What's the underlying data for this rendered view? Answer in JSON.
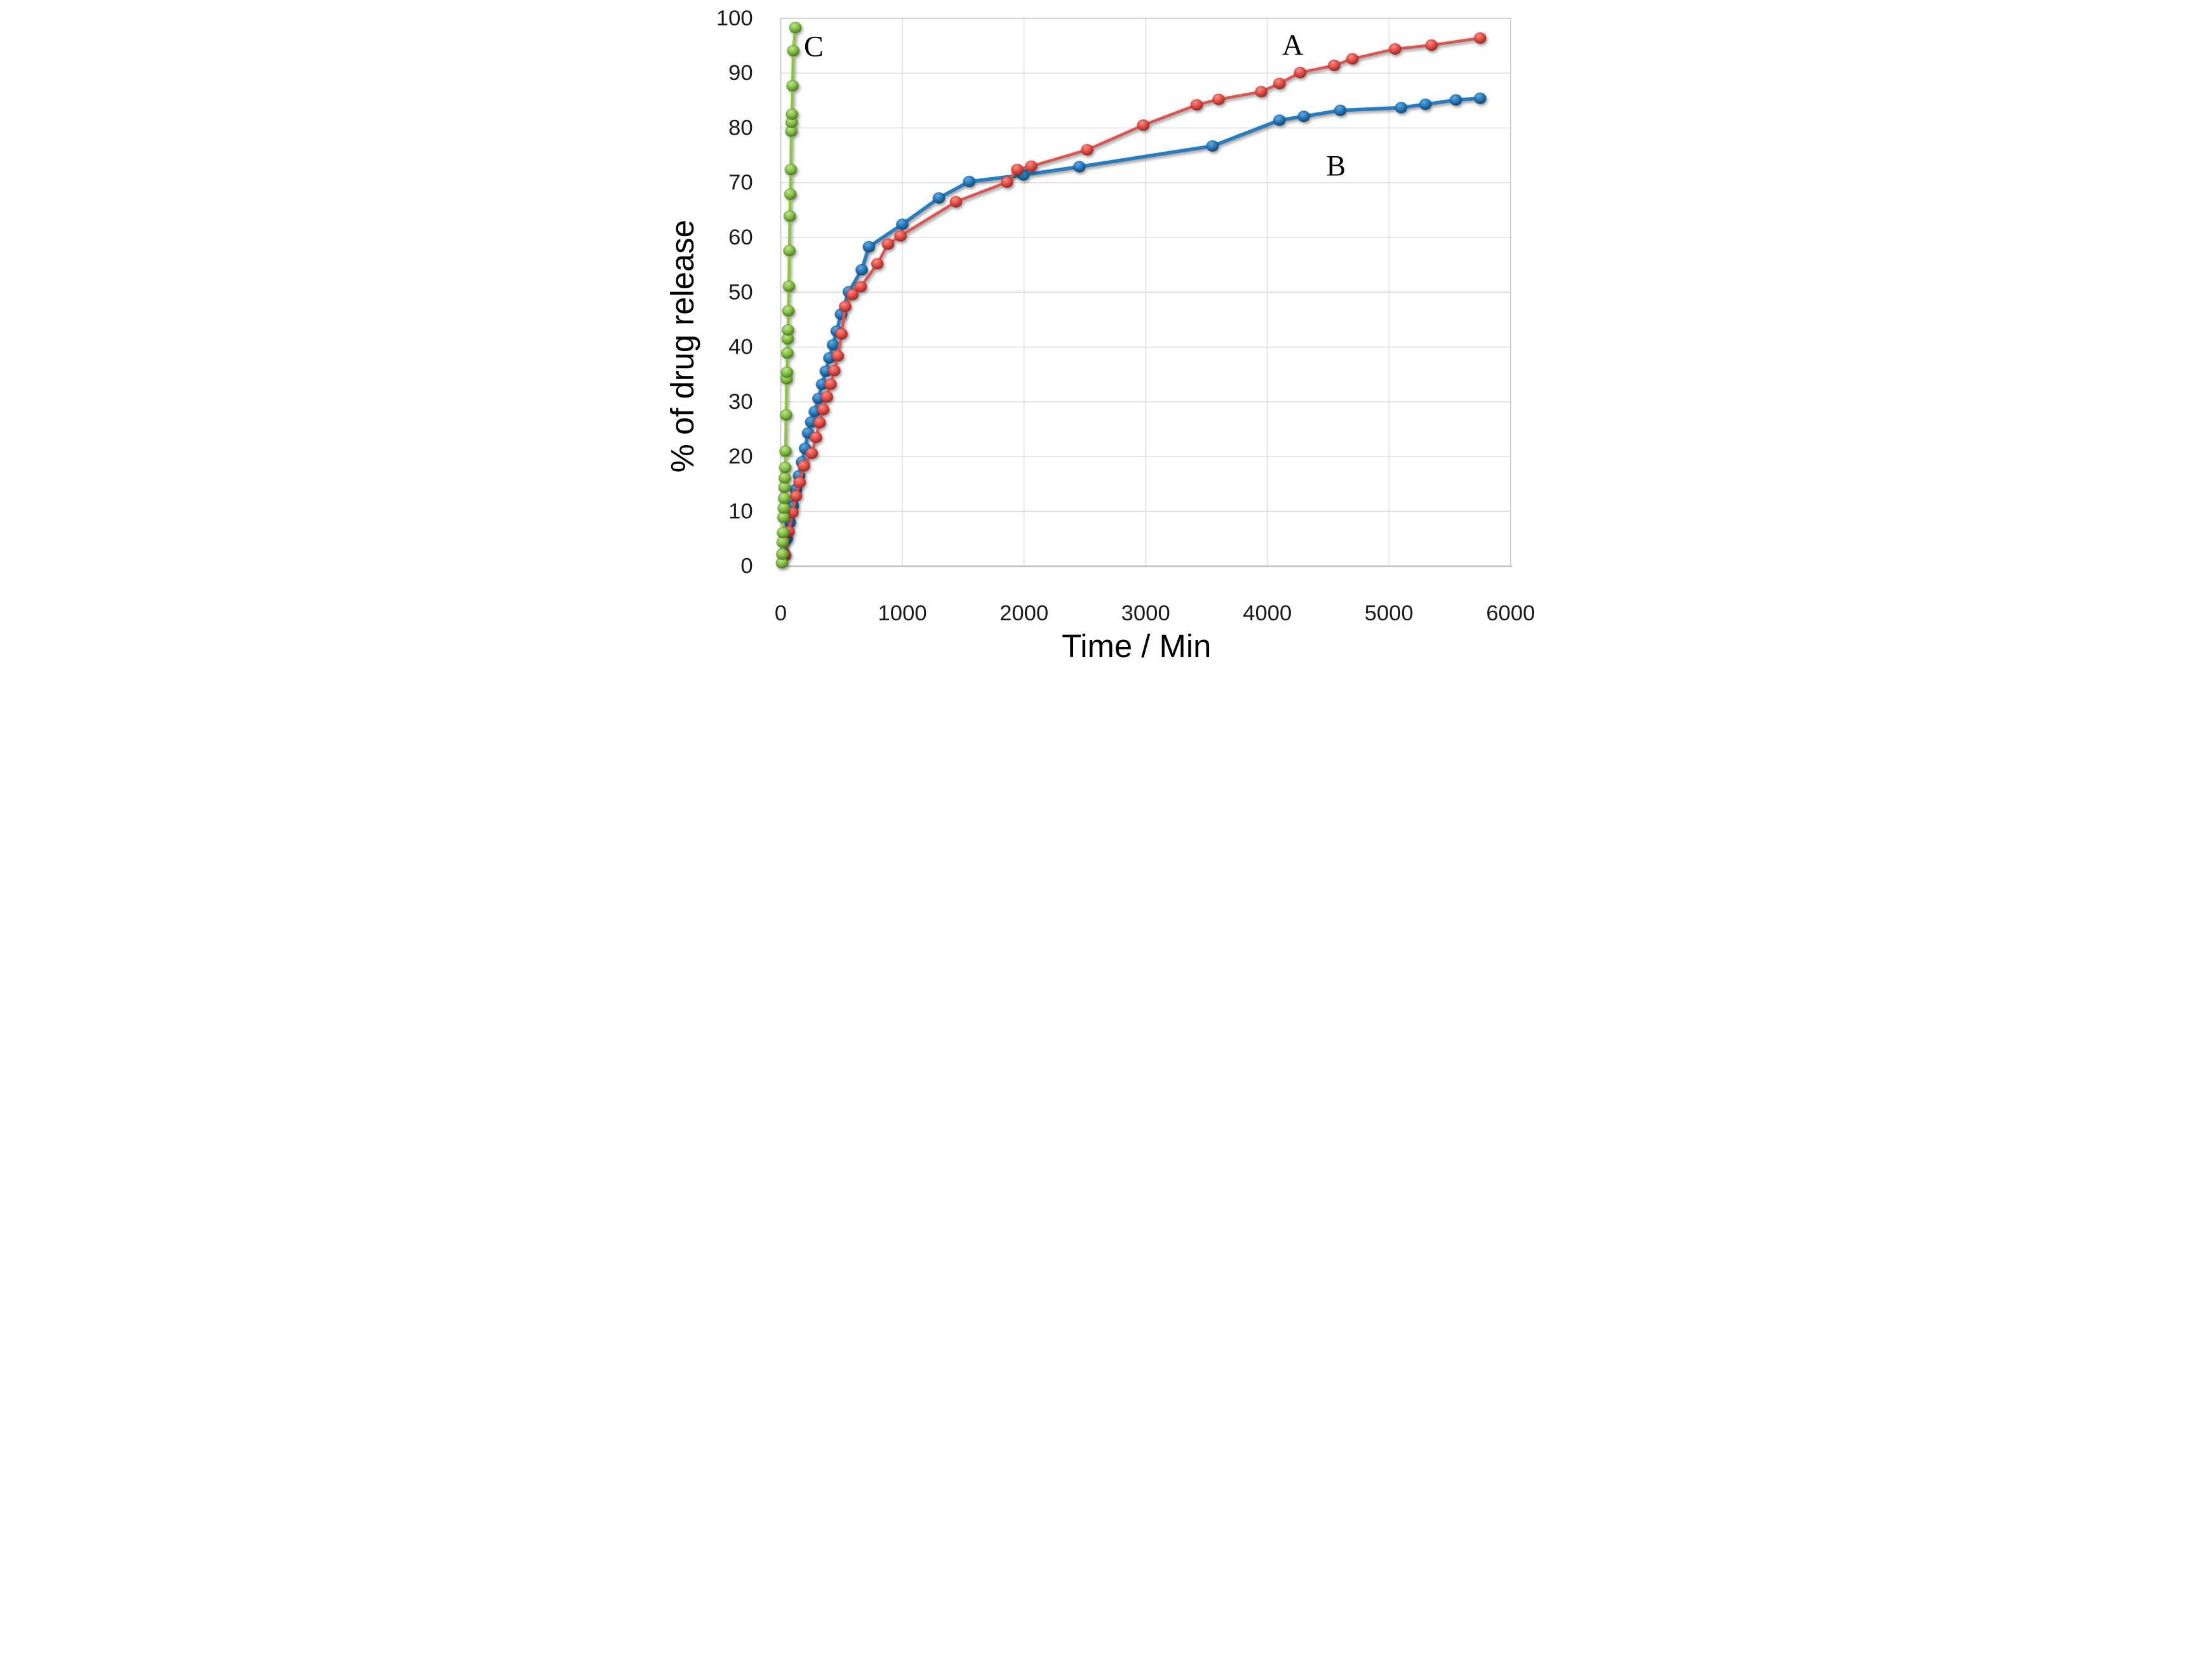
{
  "chart_data": {
    "type": "line",
    "title": "",
    "xlabel": "Time / Min",
    "ylabel": "% of drug release",
    "xlim": [
      0,
      6000
    ],
    "ylim": [
      0,
      100
    ],
    "x_ticks": [
      0,
      1000,
      2000,
      3000,
      4000,
      5000,
      6000
    ],
    "y_ticks": [
      0,
      10,
      20,
      30,
      40,
      50,
      60,
      70,
      80,
      90,
      100
    ],
    "grid": true,
    "legend_position": "none",
    "background_color": "#FFFFFF",
    "grid_color": "#D8D8D8",
    "border_color": "#C8C8C8",
    "axis_line_color": "#C4C4C4",
    "tick_label_color": "#1A1A1A",
    "title_color": "#000000",
    "marker_style": "glossy-sphere",
    "series": [
      {
        "name": "B",
        "line_color": "#2A7CBF",
        "line_width": 4.9,
        "ball_light": "#66A9DC",
        "ball_base": "#2176BC",
        "ball_dark": "#11486F",
        "points": [
          [
            25,
            2.4
          ],
          [
            50,
            5.0
          ],
          [
            75,
            8.0
          ],
          [
            100,
            11.0
          ],
          [
            125,
            14.0
          ],
          [
            150,
            16.5
          ],
          [
            175,
            19.0
          ],
          [
            200,
            21.5
          ],
          [
            225,
            24.3
          ],
          [
            250,
            26.3
          ],
          [
            280,
            28.2
          ],
          [
            310,
            30.6
          ],
          [
            340,
            33.2
          ],
          [
            370,
            35.6
          ],
          [
            400,
            38.0
          ],
          [
            430,
            40.4
          ],
          [
            460,
            42.9
          ],
          [
            495,
            46.0
          ],
          [
            560,
            50.1
          ],
          [
            666,
            54.1
          ],
          [
            725,
            58.3
          ],
          [
            1000,
            62.4
          ],
          [
            1300,
            67.2
          ],
          [
            1550,
            70.2
          ],
          [
            1995,
            71.4
          ],
          [
            2455,
            72.9
          ],
          [
            3550,
            76.7
          ],
          [
            4100,
            81.4
          ],
          [
            4300,
            82.1
          ],
          [
            4600,
            83.2
          ],
          [
            5100,
            83.7
          ],
          [
            5300,
            84.3
          ],
          [
            5550,
            85.1
          ],
          [
            5750,
            85.4
          ]
        ]
      },
      {
        "name": "A",
        "line_color": "#D95753",
        "line_width": 4.0,
        "ball_light": "#F58F88",
        "ball_base": "#E04A43",
        "ball_dark": "#9C2420",
        "points": [
          [
            35,
            2.0
          ],
          [
            65,
            6.3
          ],
          [
            95,
            9.8
          ],
          [
            125,
            12.8
          ],
          [
            155,
            15.3
          ],
          [
            190,
            18.3
          ],
          [
            255,
            20.6
          ],
          [
            290,
            23.5
          ],
          [
            320,
            26.2
          ],
          [
            350,
            28.6
          ],
          [
            380,
            30.9
          ],
          [
            410,
            33.2
          ],
          [
            440,
            35.7
          ],
          [
            470,
            38.4
          ],
          [
            500,
            42.4
          ],
          [
            530,
            47.4
          ],
          [
            590,
            49.6
          ],
          [
            658,
            51.0
          ],
          [
            794,
            55.2
          ],
          [
            882,
            58.8
          ],
          [
            985,
            60.3
          ],
          [
            1440,
            66.5
          ],
          [
            1860,
            70.1
          ],
          [
            1945,
            72.4
          ],
          [
            2060,
            73.0
          ],
          [
            2520,
            76.0
          ],
          [
            2980,
            80.5
          ],
          [
            3420,
            84.2
          ],
          [
            3600,
            85.2
          ],
          [
            3950,
            86.6
          ],
          [
            4100,
            88.1
          ],
          [
            4270,
            90.1
          ],
          [
            4550,
            91.4
          ],
          [
            4700,
            92.6
          ],
          [
            5050,
            94.4
          ],
          [
            5350,
            95.1
          ],
          [
            5750,
            96.4
          ]
        ]
      },
      {
        "name": "C",
        "line_color": "#8CC63F",
        "line_width": 4.0,
        "ball_light": "#C2E294",
        "ball_base": "#7FBC3E",
        "ball_dark": "#47771B",
        "points": [
          [
            10,
            0.6
          ],
          [
            13,
            2.2
          ],
          [
            16,
            4.4
          ],
          [
            19,
            6.1
          ],
          [
            22,
            8.9
          ],
          [
            25,
            10.6
          ],
          [
            28,
            12.4
          ],
          [
            31,
            14.4
          ],
          [
            34,
            16.1
          ],
          [
            37,
            18.0
          ],
          [
            40,
            21.0
          ],
          [
            44,
            27.6
          ],
          [
            48,
            34.2
          ],
          [
            51,
            35.4
          ],
          [
            54,
            38.9
          ],
          [
            57,
            41.5
          ],
          [
            60,
            43.1
          ],
          [
            63,
            46.6
          ],
          [
            67,
            51.1
          ],
          [
            71,
            57.6
          ],
          [
            75,
            63.9
          ],
          [
            79,
            67.9
          ],
          [
            83,
            72.4
          ],
          [
            87,
            79.4
          ],
          [
            90,
            81.0
          ],
          [
            93,
            82.5
          ],
          [
            97,
            87.7
          ],
          [
            103,
            94.1
          ],
          [
            120,
            98.3
          ]
        ]
      }
    ],
    "annotations": [
      {
        "text": "A",
        "x": 4209,
        "y": 95.2
      },
      {
        "text": "B",
        "x": 4565,
        "y": 73.1
      },
      {
        "text": "C",
        "x": 271,
        "y": 94.9
      }
    ]
  }
}
